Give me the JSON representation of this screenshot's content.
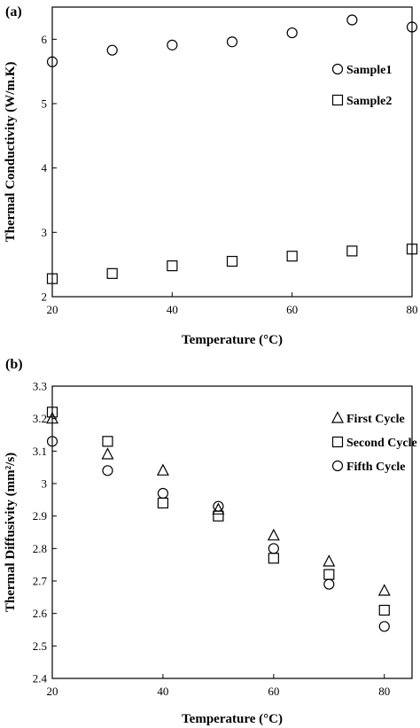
{
  "chart_data": [
    {
      "type": "scatter",
      "panel_label": "(a)",
      "xlabel": "Temperature (°C)",
      "ylabel": "Thermal Conductivity (W/m.K)",
      "xlim": [
        20,
        80
      ],
      "ylim": [
        2,
        6.5
      ],
      "xticks": [
        "20",
        "40",
        "60",
        "80"
      ],
      "yticks": [
        "2",
        "3",
        "4",
        "5",
        "6"
      ],
      "grid": false,
      "legend_position": "right",
      "series": [
        {
          "name": "Sample1",
          "marker": "circle",
          "x": [
            20,
            30,
            40,
            50,
            60,
            70,
            80
          ],
          "y": [
            5.65,
            5.83,
            5.91,
            5.96,
            6.1,
            6.3,
            6.19
          ]
        },
        {
          "name": "Sample2",
          "marker": "square",
          "x": [
            20,
            30,
            40,
            50,
            60,
            70,
            80
          ],
          "y": [
            2.28,
            2.36,
            2.48,
            2.55,
            2.63,
            2.71,
            2.74
          ]
        }
      ]
    },
    {
      "type": "scatter",
      "panel_label": "(b)",
      "xlabel": "Temperature (°C)",
      "ylabel": "Thermal Diffusivity (mm²/s)",
      "xlim": [
        20,
        85
      ],
      "ylim": [
        2.4,
        3.3
      ],
      "xticks": [
        "20",
        "40",
        "60",
        "80"
      ],
      "yticks": [
        "2.4",
        "2.5",
        "2.6",
        "2.7",
        "2.8",
        "2.9",
        "3",
        "3.1",
        "3.2",
        "3.3"
      ],
      "grid": false,
      "legend_position": "top-right",
      "series": [
        {
          "name": "First Cycle",
          "marker": "triangle",
          "x": [
            20,
            30,
            40,
            50,
            60,
            70,
            80
          ],
          "y": [
            3.2,
            3.09,
            3.04,
            2.92,
            2.84,
            2.76,
            2.67
          ]
        },
        {
          "name": "Second Cycle",
          "marker": "square",
          "x": [
            20,
            30,
            40,
            50,
            60,
            70,
            80
          ],
          "y": [
            3.22,
            3.13,
            2.94,
            2.9,
            2.77,
            2.72,
            2.61
          ]
        },
        {
          "name": "Fifth Cycle",
          "marker": "circle",
          "x": [
            20,
            30,
            40,
            50,
            60,
            70,
            80
          ],
          "y": [
            3.13,
            3.04,
            2.97,
            2.93,
            2.8,
            2.69,
            2.56
          ]
        }
      ]
    }
  ]
}
